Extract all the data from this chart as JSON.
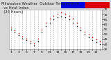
{
  "title": "Milwaukee Weather  Outdoor Temperature\n  vs Heat Index\n  (24 Hours)",
  "title_fontsize": 3.8,
  "background_color": "#d8d8d8",
  "plot_bg_color": "#ffffff",
  "x_hours": [
    1,
    2,
    3,
    4,
    5,
    6,
    7,
    8,
    9,
    10,
    11,
    12,
    13,
    14,
    15,
    16,
    17,
    18,
    19,
    20,
    21,
    22,
    23,
    24
  ],
  "temp_values": [
    55,
    52,
    49,
    46,
    44,
    41,
    39,
    43,
    52,
    58,
    62,
    65,
    67,
    68,
    67,
    65,
    62,
    58,
    54,
    50,
    47,
    44,
    42,
    40
  ],
  "heat_values": [
    57,
    54,
    51,
    48,
    46,
    43,
    41,
    46,
    55,
    62,
    66,
    69,
    71,
    72,
    71,
    69,
    66,
    62,
    57,
    53,
    50,
    47,
    45,
    43
  ],
  "temp_color": "#000000",
  "heat_color": "#cc0000",
  "legend_temp_color": "#0000dd",
  "legend_heat_color": "#dd0000",
  "ylim_min": 35,
  "ylim_max": 75,
  "grid_color": "#aaaaaa",
  "tick_fontsize": 3.2,
  "ylabel_fontsize": 3.2,
  "x_label_hours": [
    1,
    3,
    5,
    7,
    9,
    11,
    13,
    15,
    17,
    19,
    21,
    23
  ]
}
